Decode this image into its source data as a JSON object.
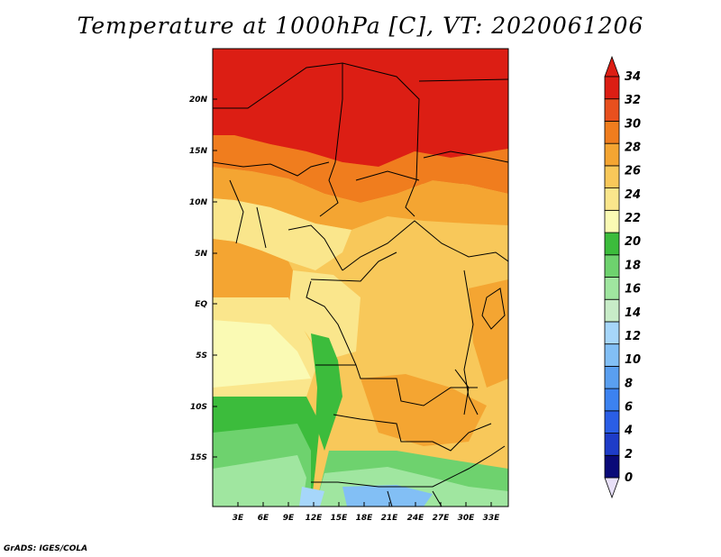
{
  "title": "Temperature at 1000hPa [C], VT: 2020061206",
  "credit": "GrADS: IGES/COLA",
  "map": {
    "lat_ticks": [
      "20N",
      "15N",
      "10N",
      "5N",
      "EQ",
      "5S",
      "10S",
      "15S"
    ],
    "lon_ticks": [
      "3E",
      "6E",
      "9E",
      "12E",
      "15E",
      "18E",
      "21E",
      "24E",
      "27E",
      "30E",
      "33E"
    ]
  },
  "colorbar": {
    "labels": [
      "0",
      "2",
      "4",
      "6",
      "8",
      "10",
      "12",
      "14",
      "16",
      "18",
      "20",
      "22",
      "24",
      "26",
      "28",
      "30",
      "32",
      "34"
    ],
    "colors": [
      "#0a0a78",
      "#1e3cc8",
      "#2a5ee6",
      "#3c82f0",
      "#5a9ff0",
      "#82bff5",
      "#a6d6fa",
      "#c8ecc8",
      "#a0e6a0",
      "#6ed26e",
      "#3cbc3c",
      "#fafab4",
      "#fae68c",
      "#f8c85a",
      "#f4a532",
      "#f07d1e",
      "#e8501e",
      "#dc1e14"
    ],
    "under_color": "#e8e0f8"
  }
}
